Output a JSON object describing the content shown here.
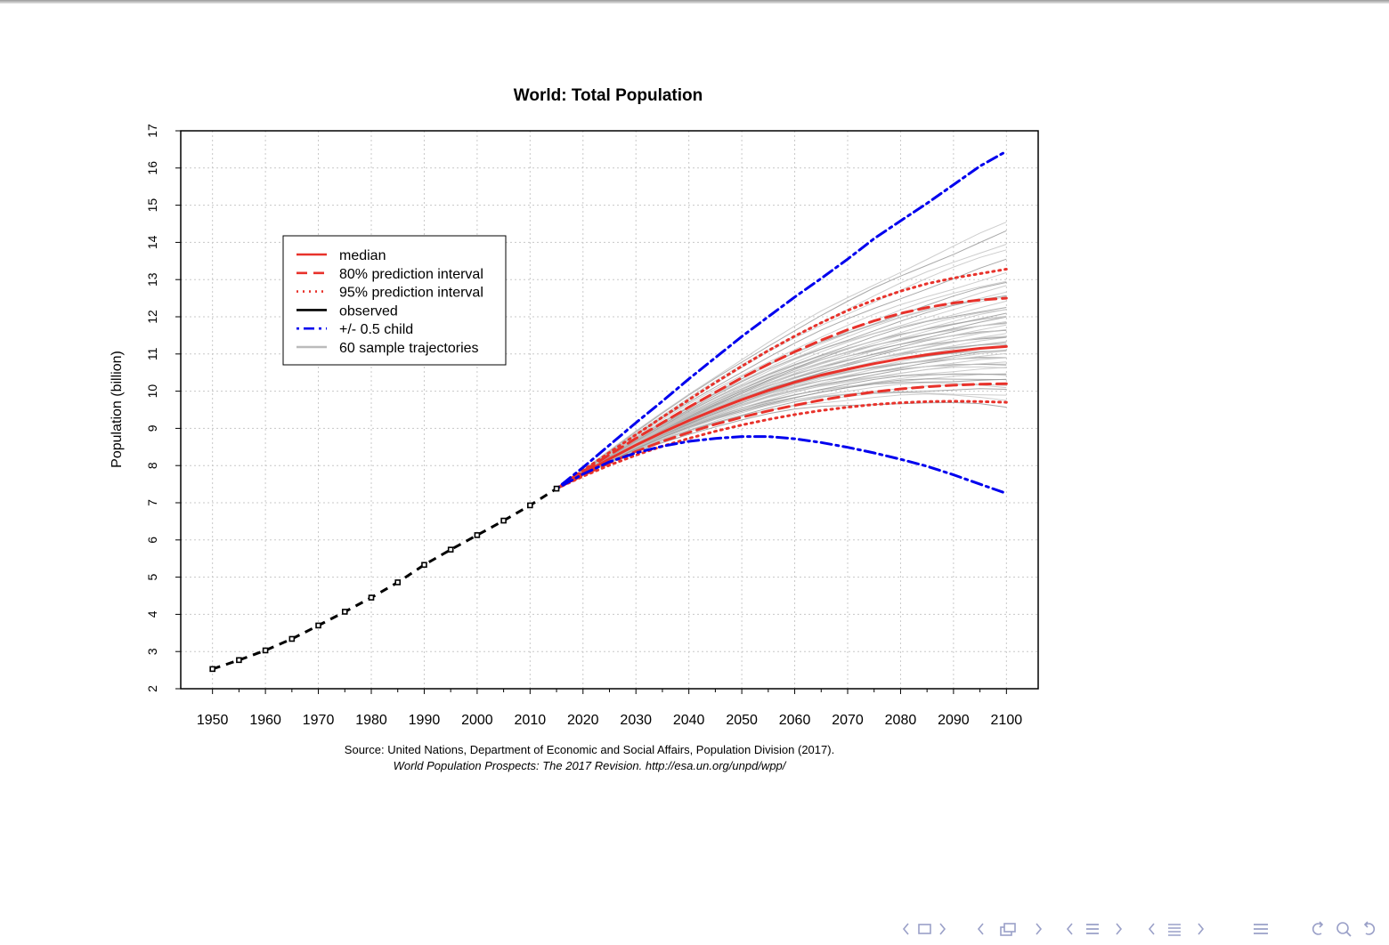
{
  "chart_data": {
    "type": "line",
    "title": "World: Total Population",
    "xlabel": "",
    "ylabel": "Population (billion)",
    "xlim": [
      1944,
      2106
    ],
    "ylim": [
      2,
      17
    ],
    "x_ticks": [
      1950,
      1960,
      1970,
      1980,
      1990,
      2000,
      2010,
      2020,
      2030,
      2040,
      2050,
      2060,
      2070,
      2080,
      2090,
      2100
    ],
    "y_ticks": [
      2,
      3,
      4,
      5,
      6,
      7,
      8,
      9,
      10,
      11,
      12,
      13,
      14,
      15,
      16,
      17
    ],
    "grid": true,
    "legend_position": "top-left",
    "legend": [
      {
        "label": "median",
        "color": "#e8322b",
        "style": "solid"
      },
      {
        "label": "80% prediction interval",
        "color": "#e8322b",
        "style": "dashed"
      },
      {
        "label": "95% prediction interval",
        "color": "#e8322b",
        "style": "dotted"
      },
      {
        "label": "observed",
        "color": "#000000",
        "style": "solid"
      },
      {
        "label": "+/- 0.5 child",
        "color": "#0000ee",
        "style": "dashdot"
      },
      {
        "label": "60 sample trajectories",
        "color": "#bbbbbb",
        "style": "solid"
      }
    ],
    "source_line1": "Source: United Nations, Department of Economic and Social Affairs, Population Division (2017).",
    "source_line2": "World Population Prospects: The 2017 Revision. http://esa.un.org/unpd/wpp/",
    "observed": {
      "x": [
        1950,
        1955,
        1960,
        1965,
        1970,
        1975,
        1980,
        1985,
        1990,
        1995,
        2000,
        2005,
        2010,
        2015
      ],
      "y": [
        2.53,
        2.77,
        3.03,
        3.34,
        3.7,
        4.07,
        4.45,
        4.86,
        5.33,
        5.74,
        6.13,
        6.52,
        6.93,
        7.38
      ]
    },
    "projection_x": [
      2015,
      2020,
      2025,
      2030,
      2035,
      2040,
      2045,
      2050,
      2055,
      2060,
      2065,
      2070,
      2075,
      2080,
      2085,
      2090,
      2095,
      2100
    ],
    "series": [
      {
        "key": "median",
        "values": [
          7.38,
          7.79,
          8.18,
          8.55,
          8.89,
          9.21,
          9.5,
          9.77,
          10.02,
          10.24,
          10.43,
          10.59,
          10.74,
          10.87,
          10.98,
          11.07,
          11.15,
          11.2
        ]
      },
      {
        "key": "pi80_upper",
        "values": [
          7.38,
          7.84,
          8.29,
          8.73,
          9.15,
          9.57,
          9.97,
          10.36,
          10.72,
          11.06,
          11.37,
          11.65,
          11.89,
          12.09,
          12.25,
          12.37,
          12.45,
          12.5
        ]
      },
      {
        "key": "pi80_lower",
        "values": [
          7.38,
          7.74,
          8.07,
          8.38,
          8.65,
          8.89,
          9.11,
          9.3,
          9.47,
          9.62,
          9.76,
          9.88,
          9.98,
          10.06,
          10.12,
          10.16,
          10.19,
          10.2
        ]
      },
      {
        "key": "pi95_upper",
        "values": [
          7.38,
          7.87,
          8.35,
          8.83,
          9.3,
          9.77,
          10.23,
          10.67,
          11.09,
          11.48,
          11.84,
          12.17,
          12.45,
          12.69,
          12.89,
          13.04,
          13.16,
          13.28
        ]
      },
      {
        "key": "pi95_lower",
        "values": [
          7.38,
          7.71,
          8.01,
          8.28,
          8.52,
          8.73,
          8.92,
          9.09,
          9.24,
          9.37,
          9.48,
          9.57,
          9.64,
          9.69,
          9.72,
          9.73,
          9.72,
          9.7
        ]
      },
      {
        "key": "plus_half_child",
        "values": [
          7.38,
          7.95,
          8.55,
          9.15,
          9.73,
          10.33,
          10.9,
          11.47,
          12.0,
          12.53,
          13.03,
          13.55,
          14.1,
          14.58,
          15.05,
          15.55,
          16.05,
          16.45
        ]
      },
      {
        "key": "minus_half_child",
        "values": [
          7.38,
          7.77,
          8.1,
          8.34,
          8.52,
          8.65,
          8.73,
          8.78,
          8.78,
          8.72,
          8.62,
          8.49,
          8.34,
          8.17,
          7.98,
          7.75,
          7.5,
          7.25
        ]
      }
    ],
    "sample_trajectory_end_values": [
      9.55,
      9.8,
      9.9,
      10.0,
      10.1,
      10.2,
      10.3,
      10.4,
      10.45,
      10.5,
      10.6,
      10.7,
      10.75,
      10.8,
      10.85,
      10.9,
      10.95,
      11.0,
      11.05,
      11.1,
      11.15,
      11.2,
      11.25,
      11.3,
      11.35,
      11.4,
      11.45,
      11.5,
      11.55,
      11.6,
      11.65,
      11.7,
      11.75,
      11.8,
      11.85,
      11.9,
      11.95,
      12.0,
      12.05,
      12.1,
      12.15,
      12.2,
      12.3,
      12.4,
      12.5,
      12.6,
      12.7,
      12.8,
      12.9,
      13.0,
      13.2,
      13.5,
      13.8,
      14.0,
      14.3,
      14.5,
      10.65,
      10.35,
      11.05,
      11.45
    ]
  },
  "nav": {
    "color": "#9aa0c8",
    "icons": [
      "nav-prev-frame-icon",
      "nav-frame-icon",
      "nav-next-frame-icon",
      "nav-prev-slide-icon",
      "nav-slide-icon",
      "nav-next-slide-icon",
      "nav-prev-section-icon",
      "nav-section-icon",
      "nav-next-section-icon",
      "nav-prev-subsection-icon",
      "nav-subsection-icon",
      "nav-next-subsection-icon",
      "nav-toc-icon",
      "nav-undo-icon",
      "nav-search-icon",
      "nav-redo-icon"
    ]
  }
}
